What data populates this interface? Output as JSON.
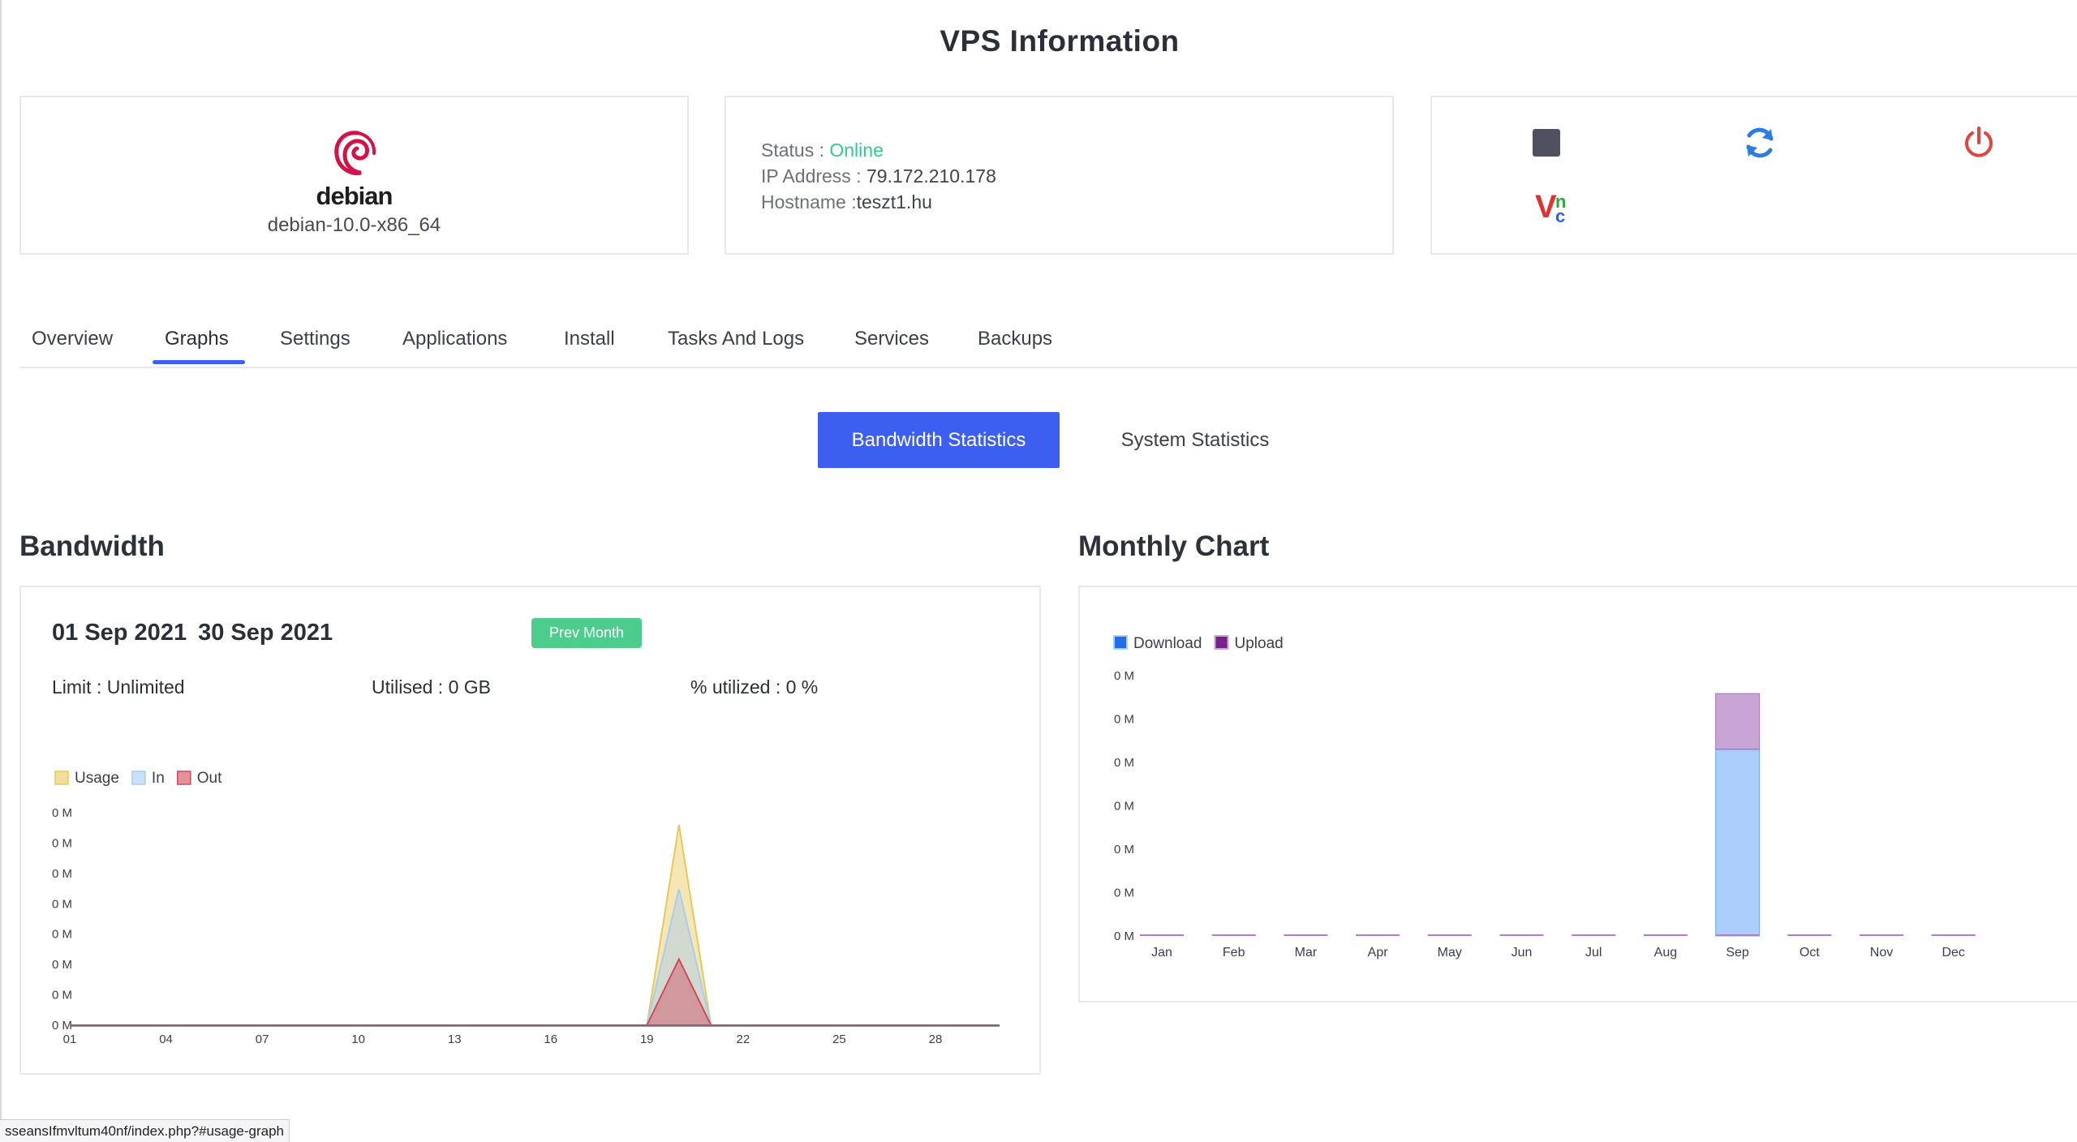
{
  "page": {
    "title": "VPS Information"
  },
  "os": {
    "brand": "debian",
    "version": "debian-10.0-x86_64"
  },
  "info": {
    "status_label": "Status : ",
    "status_value": "Online",
    "ip_label": "IP Address : ",
    "ip_value": "79.172.210.178",
    "hostname_label": "Hostname :",
    "hostname_value": "teszt1.hu"
  },
  "actions": {
    "stop_icon": "stop-icon",
    "restart_icon": "refresh-icon",
    "power_icon": "power-icon",
    "vnc_icon": "vnc-icon",
    "vnc_label_v": "V",
    "vnc_label_n": "n",
    "vnc_label_c": "c"
  },
  "tabs": [
    {
      "label": "Overview"
    },
    {
      "label": "Graphs",
      "active": true
    },
    {
      "label": "Settings"
    },
    {
      "label": "Applications"
    },
    {
      "label": "Install"
    },
    {
      "label": "Tasks And Logs"
    },
    {
      "label": "Services"
    },
    {
      "label": "Backups"
    }
  ],
  "stats_switch": {
    "bandwidth": "Bandwidth Statistics",
    "system": "System Statistics"
  },
  "bandwidth": {
    "title": "Bandwidth",
    "date_from": "01 Sep 2021",
    "date_to": "30 Sep 2021",
    "prev_month": "Prev Month",
    "limit": "Limit : Unlimited",
    "utilised": "Utilised : 0 GB",
    "percent": "% utilized : 0 %"
  },
  "monthly": {
    "title": "Monthly Chart"
  },
  "chart_data": [
    {
      "type": "area",
      "legend": [
        "Usage",
        "In",
        "Out"
      ],
      "colors": {
        "Usage": "#e8c85a",
        "In": "#a9cdef",
        "Out": "#d0495a"
      },
      "x_ticks": [
        "01",
        "04",
        "07",
        "10",
        "13",
        "16",
        "19",
        "22",
        "25",
        "28"
      ],
      "y_ticks": [
        "0 M",
        "0 M",
        "0 M",
        "0 M",
        "0 M",
        "0 M",
        "0 M",
        "0 M"
      ],
      "x": [
        1,
        2,
        3,
        4,
        5,
        6,
        7,
        8,
        9,
        10,
        11,
        12,
        13,
        14,
        15,
        16,
        17,
        18,
        19,
        20,
        21,
        22,
        23,
        24,
        25,
        26,
        27,
        28,
        29,
        30
      ],
      "series": [
        {
          "name": "Usage",
          "values": [
            0,
            0,
            0,
            0,
            0,
            0,
            0,
            0,
            0,
            0,
            0,
            0,
            0,
            0,
            0,
            0,
            0,
            0,
            0,
            1.0,
            0,
            0,
            0,
            0,
            0,
            0,
            0,
            0,
            0,
            0
          ]
        },
        {
          "name": "In",
          "values": [
            0,
            0,
            0,
            0,
            0,
            0,
            0,
            0,
            0,
            0,
            0,
            0,
            0,
            0,
            0,
            0,
            0,
            0,
            0,
            0.68,
            0,
            0,
            0,
            0,
            0,
            0,
            0,
            0,
            0,
            0
          ]
        },
        {
          "name": "Out",
          "values": [
            0,
            0,
            0,
            0,
            0,
            0,
            0,
            0,
            0,
            0,
            0,
            0,
            0,
            0,
            0,
            0,
            0,
            0,
            0,
            0.33,
            0,
            0,
            0,
            0,
            0,
            0,
            0,
            0,
            0,
            0
          ]
        }
      ]
    },
    {
      "type": "bar",
      "stacked": true,
      "legend": [
        "Download",
        "Upload"
      ],
      "colors": {
        "Download": "#1f6fe8",
        "Upload": "#7b1f8f",
        "Download_fill": "#aacdfb",
        "Upload_fill": "#c9a5d6"
      },
      "categories": [
        "Jan",
        "Feb",
        "Mar",
        "Apr",
        "May",
        "Jun",
        "Jul",
        "Aug",
        "Sep",
        "Oct",
        "Nov",
        "Dec"
      ],
      "y_ticks": [
        "0 M",
        "0 M",
        "0 M",
        "0 M",
        "0 M",
        "0 M",
        "0 M"
      ],
      "series": [
        {
          "name": "Download",
          "values": [
            0,
            0,
            0,
            0,
            0,
            0,
            0,
            0,
            0.77,
            0,
            0,
            0
          ]
        },
        {
          "name": "Upload",
          "values": [
            0,
            0,
            0,
            0,
            0,
            0,
            0,
            0,
            0.23,
            0,
            0,
            0
          ]
        }
      ]
    }
  ],
  "status_bar": {
    "url": "sseansIfmvltum40nf/index.php?#usage-graph"
  }
}
